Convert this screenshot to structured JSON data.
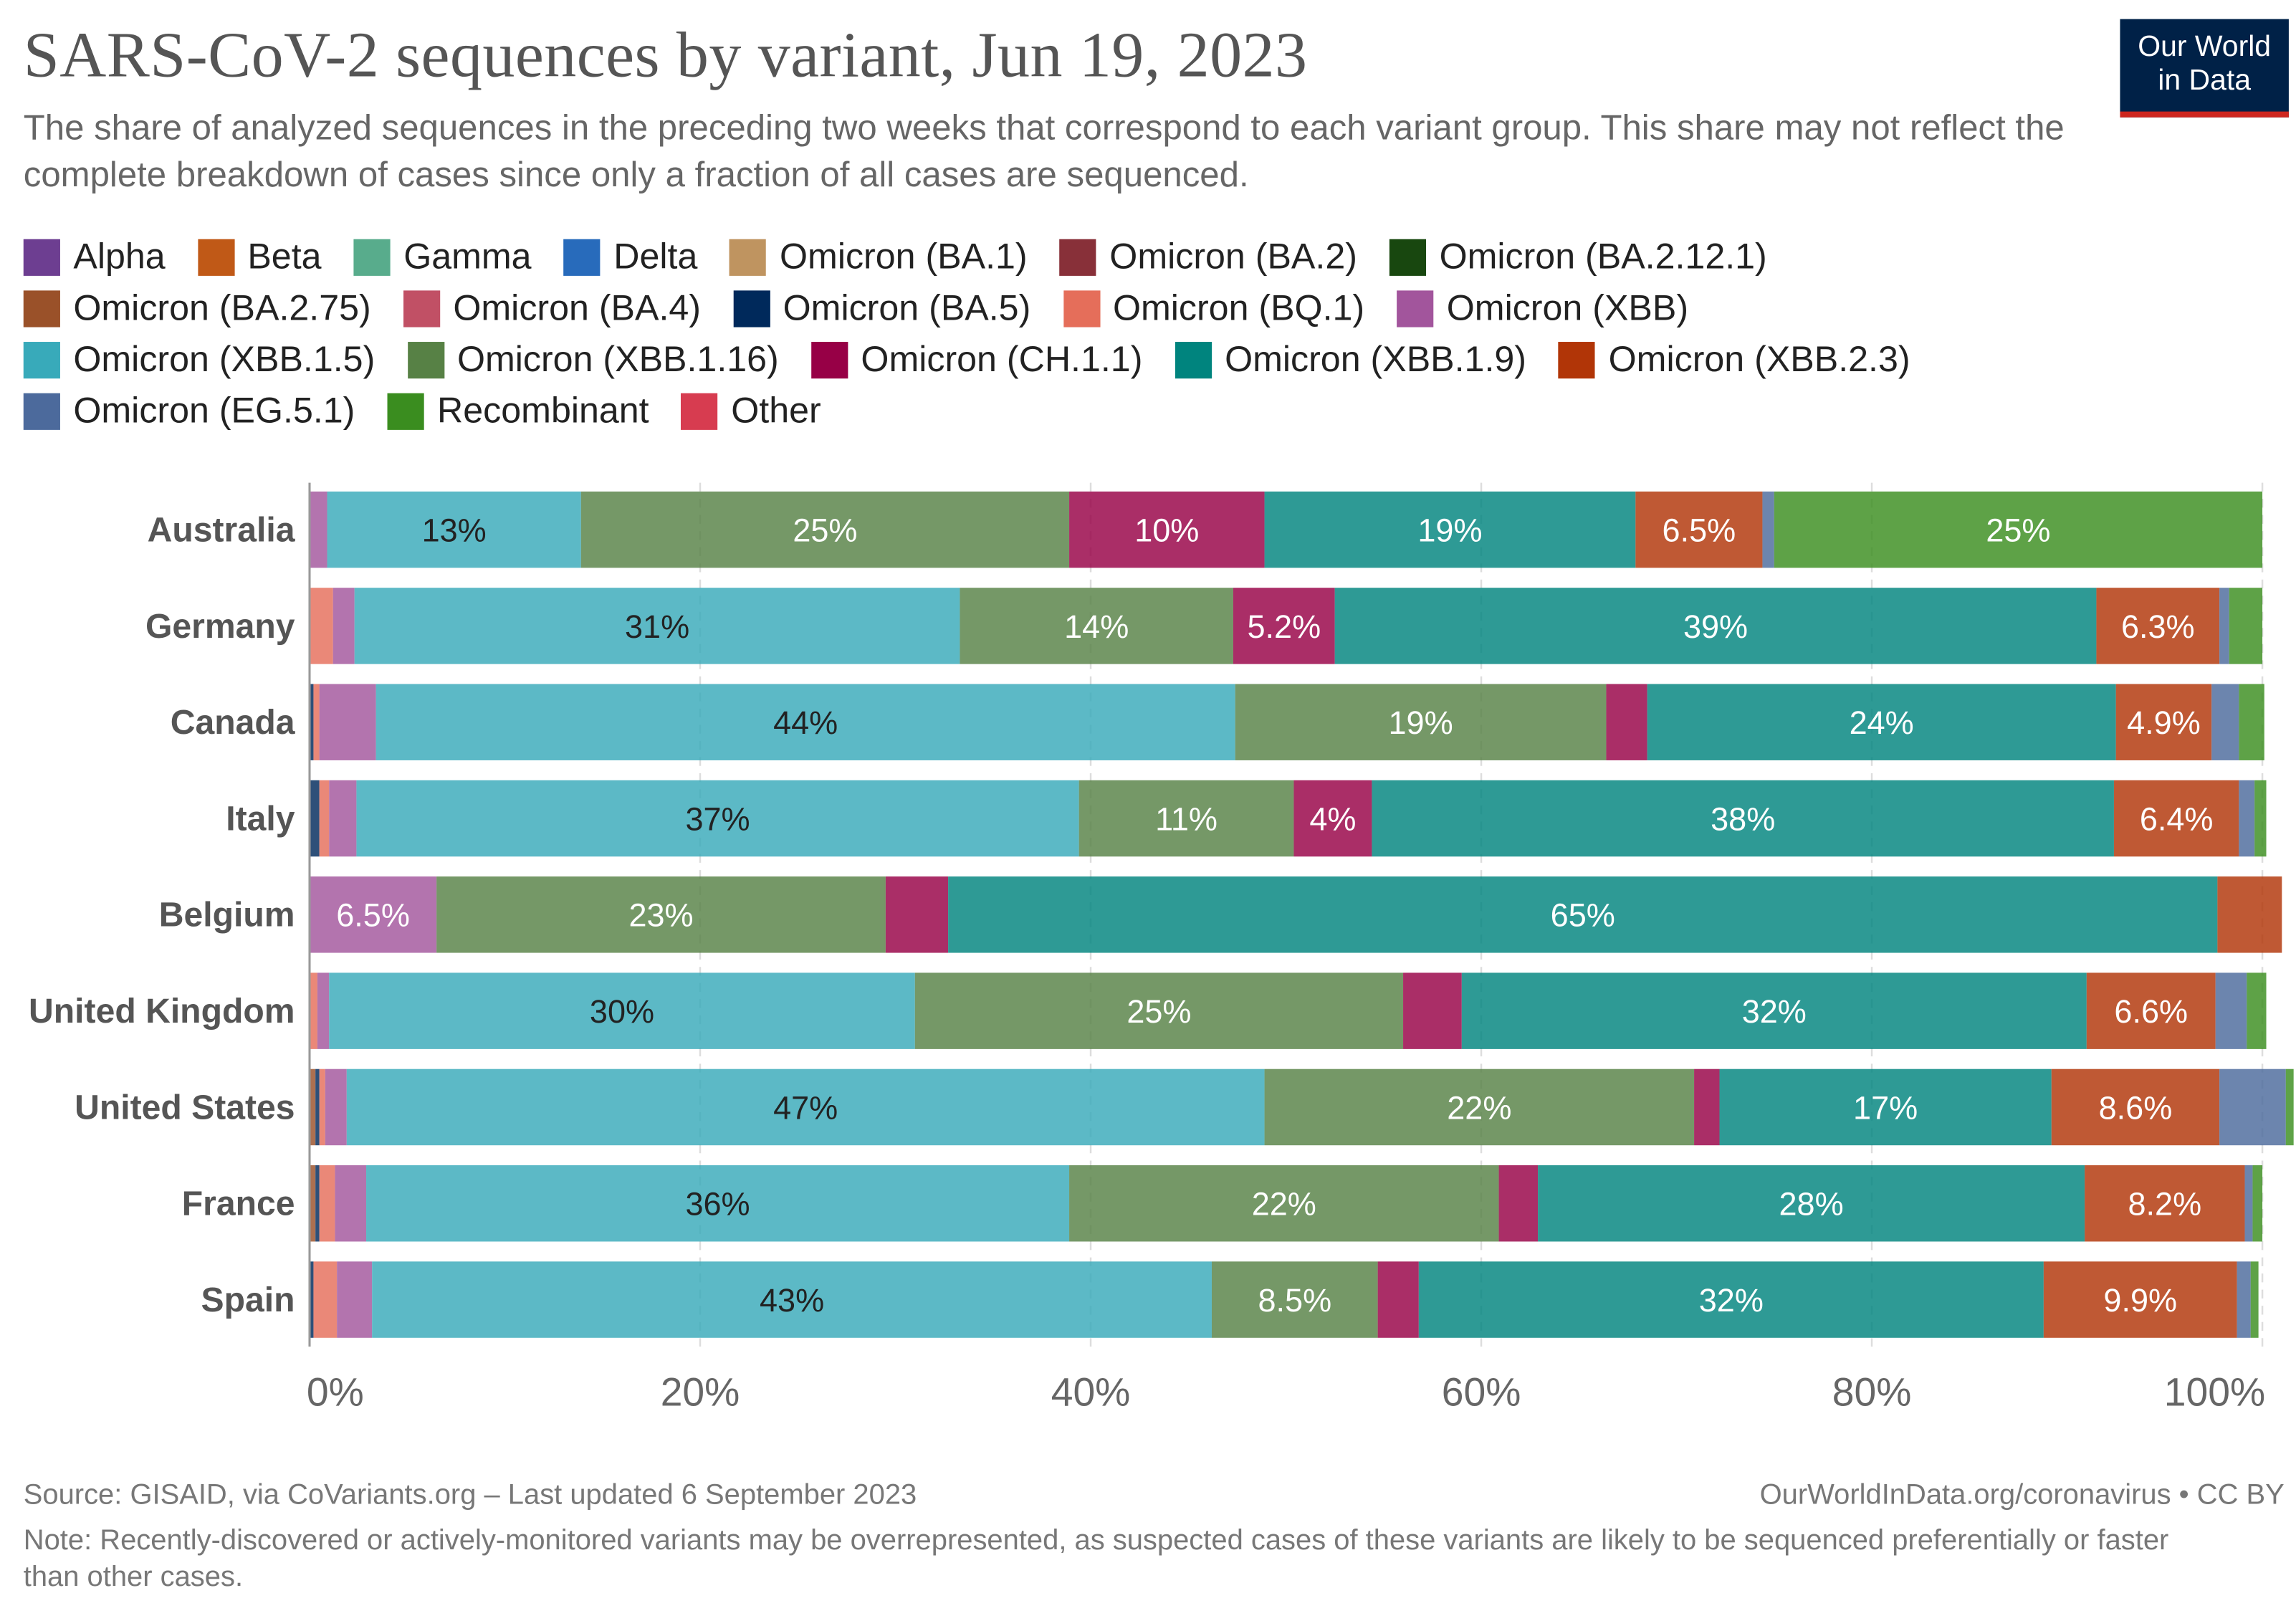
{
  "title": "SARS-CoV-2 sequences by variant, Jun 19, 2023",
  "subtitle": "The share of analyzed sequences in the preceding two weeks that correspond to each variant group. This share may not reflect the complete breakdown of cases since only a fraction of all cases are sequenced.",
  "logo": {
    "line1": "Our World",
    "line2": "in Data"
  },
  "footer": {
    "source": "Source: GISAID, via CoVariants.org – Last updated 6 September 2023",
    "url": "OurWorldInData.org/coronavirus • CC BY",
    "note": "Note: Recently-discovered or actively-monitored variants may be overrepresented, as suspected cases of these variants are likely to be sequenced preferentially or faster than other cases."
  },
  "legend": [
    [
      {
        "label": "Alpha",
        "color": "#6d3e91"
      },
      {
        "label": "Beta",
        "color": "#c05917"
      },
      {
        "label": "Gamma",
        "color": "#58ac8c"
      },
      {
        "label": "Delta",
        "color": "#286bbb"
      },
      {
        "label": "Omicron (BA.1)",
        "color": "#bf9460"
      },
      {
        "label": "Omicron (BA.2)",
        "color": "#883039"
      },
      {
        "label": "Omicron (BA.2.12.1)",
        "color": "#18470f"
      }
    ],
    [
      {
        "label": "Omicron (BA.2.75)",
        "color": "#9a5129"
      },
      {
        "label": "Omicron (BA.4)",
        "color": "#c15065"
      },
      {
        "label": "Omicron (BA.5)",
        "color": "#00295b"
      },
      {
        "label": "Omicron (BQ.1)",
        "color": "#e56e5a"
      },
      {
        "label": "Omicron (XBB)",
        "color": "#a2559c"
      }
    ],
    [
      {
        "label": "Omicron (XBB.1.5)",
        "color": "#38aaba"
      },
      {
        "label": "Omicron (XBB.1.16)",
        "color": "#578145"
      },
      {
        "label": "Omicron (CH.1.1)",
        "color": "#970046"
      },
      {
        "label": "Omicron (XBB.1.9)",
        "color": "#00847e"
      },
      {
        "label": "Omicron (XBB.2.3)",
        "color": "#b13507"
      }
    ],
    [
      {
        "label": "Omicron (EG.5.1)",
        "color": "#4c6a9c"
      },
      {
        "label": "Recombinant",
        "color": "#3a8d1f"
      },
      {
        "label": "Other",
        "color": "#d73c50"
      }
    ]
  ],
  "chart_data": {
    "type": "bar",
    "orientation": "horizontal",
    "stacked": true,
    "xlim": [
      0,
      100
    ],
    "x_ticks": [
      "0%",
      "20%",
      "40%",
      "60%",
      "80%",
      "100%"
    ],
    "grid": true,
    "legend_position": "top",
    "categories": [
      "Australia",
      "Germany",
      "Canada",
      "Italy",
      "Belgium",
      "United Kingdom",
      "United States",
      "France",
      "Spain"
    ],
    "series": [
      {
        "name": "Omicron (BA.2.75)",
        "color": "#9a5129",
        "values": [
          0,
          0,
          0,
          0,
          0,
          0,
          0.3,
          0.3,
          0
        ],
        "labels": [
          "",
          "",
          "",
          "",
          "",
          "",
          "",
          "",
          ""
        ]
      },
      {
        "name": "Omicron (BA.5)",
        "color": "#00295b",
        "values": [
          0,
          0,
          0.2,
          0.5,
          0,
          0,
          0.2,
          0.2,
          0.2
        ],
        "labels": [
          "",
          "",
          "",
          "",
          "",
          "",
          "",
          "",
          ""
        ]
      },
      {
        "name": "Omicron (BQ.1)",
        "color": "#e56e5a",
        "values": [
          0,
          1.2,
          0.3,
          0.5,
          0,
          0.4,
          0.3,
          0.8,
          1.2
        ],
        "labels": [
          "",
          "",
          "",
          "",
          "",
          "",
          "",
          "",
          ""
        ]
      },
      {
        "name": "Omicron (XBB)",
        "color": "#a2559c",
        "values": [
          0.9,
          1.1,
          2.9,
          1.4,
          6.5,
          0.6,
          1.1,
          1.6,
          1.8
        ],
        "labels": [
          "",
          "",
          "",
          "",
          "6.5%",
          "",
          "",
          "",
          ""
        ]
      },
      {
        "name": "Omicron (XBB.1.5)",
        "color": "#38aaba",
        "values": [
          13,
          31,
          44,
          37,
          0,
          30,
          47,
          36,
          43
        ],
        "labels": [
          "13%",
          "31%",
          "44%",
          "37%",
          "",
          "30%",
          "47%",
          "36%",
          "43%"
        ]
      },
      {
        "name": "Omicron (XBB.1.16)",
        "color": "#578145",
        "values": [
          25,
          14,
          19,
          11,
          23,
          25,
          22,
          22,
          8.5
        ],
        "labels": [
          "25%",
          "14%",
          "19%",
          "11%",
          "23%",
          "25%",
          "22%",
          "22%",
          "8.5%"
        ]
      },
      {
        "name": "Omicron (CH.1.1)",
        "color": "#970046",
        "values": [
          10,
          5.2,
          2.1,
          4,
          3.2,
          3,
          1.3,
          2,
          2.1
        ],
        "labels": [
          "10%",
          "5.2%",
          "",
          "4%",
          "",
          "",
          "",
          "",
          ""
        ]
      },
      {
        "name": "Omicron (XBB.1.9)",
        "color": "#00847e",
        "values": [
          19,
          39,
          24,
          38,
          65,
          32,
          17,
          28,
          32
        ],
        "labels": [
          "19%",
          "39%",
          "24%",
          "38%",
          "65%",
          "32%",
          "17%",
          "28%",
          "32%"
        ]
      },
      {
        "name": "Omicron (XBB.2.3)",
        "color": "#b13507",
        "values": [
          6.5,
          6.3,
          4.9,
          6.4,
          3.3,
          6.6,
          8.6,
          8.2,
          9.9
        ],
        "labels": [
          "6.5%",
          "6.3%",
          "4.9%",
          "6.4%",
          "",
          "6.6%",
          "8.6%",
          "8.2%",
          "9.9%"
        ]
      },
      {
        "name": "Omicron (EG.5.1)",
        "color": "#4c6a9c",
        "values": [
          0.6,
          0.5,
          1.4,
          0.8,
          0,
          1.6,
          3.4,
          0.4,
          0.7
        ],
        "labels": [
          "",
          "",
          "",
          "",
          "",
          "",
          "",
          "",
          ""
        ]
      },
      {
        "name": "Recombinant",
        "color": "#3a8d1f",
        "values": [
          25,
          1.7,
          1.3,
          0.6,
          0,
          1.0,
          0.4,
          0.5,
          0.4
        ],
        "labels": [
          "25%",
          "",
          "",
          "",
          "",
          "",
          "",
          "",
          ""
        ]
      }
    ]
  }
}
